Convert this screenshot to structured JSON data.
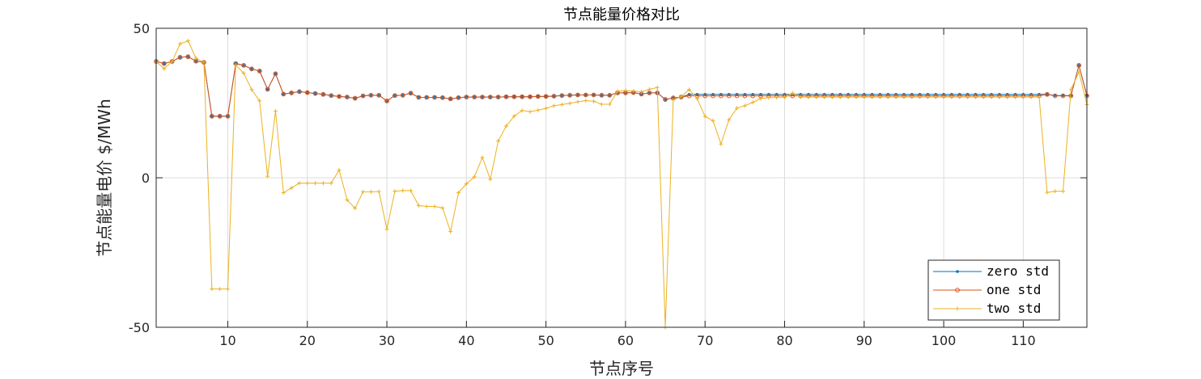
{
  "chart_data": {
    "type": "line",
    "title": "节点能量价格对比",
    "xlabel": "节点序号",
    "ylabel": "节点能量电价 $/MWh",
    "xlim": [
      1,
      118
    ],
    "ylim": [
      -50,
      50
    ],
    "xticks": [
      10,
      20,
      30,
      40,
      50,
      60,
      70,
      80,
      90,
      100,
      110
    ],
    "yticks": [
      -50,
      0,
      50
    ],
    "grid": true,
    "legend_position": "bottom-right",
    "series": [
      {
        "name": "zero std",
        "color": "#0072BD",
        "marker": "dot",
        "values": [
          38.9,
          38.2,
          38.9,
          40.3,
          40.5,
          39.0,
          38.6,
          20.6,
          20.6,
          20.6,
          38.2,
          37.6,
          36.4,
          35.7,
          29.6,
          34.8,
          28.0,
          28.4,
          28.8,
          28.5,
          28.2,
          27.9,
          27.5,
          27.2,
          27.0,
          26.6,
          27.4,
          27.6,
          27.6,
          25.7,
          27.5,
          27.6,
          28.3,
          26.9,
          26.9,
          26.9,
          26.8,
          26.4,
          26.8,
          27.0,
          27.0,
          27.0,
          27.0,
          27.0,
          27.1,
          27.1,
          27.1,
          27.1,
          27.2,
          27.2,
          27.3,
          27.5,
          27.6,
          27.7,
          27.7,
          27.7,
          27.6,
          27.6,
          28.4,
          28.4,
          28.5,
          28.0,
          28.4,
          28.4,
          26.2,
          26.7,
          27.0,
          27.9,
          27.9,
          27.9,
          27.9,
          27.9,
          27.9,
          27.9,
          27.9,
          27.9,
          27.9,
          27.9,
          27.9,
          27.9,
          27.9,
          27.9,
          27.9,
          27.9,
          27.9,
          27.9,
          27.9,
          27.9,
          27.9,
          27.9,
          27.9,
          27.9,
          27.9,
          27.9,
          27.9,
          27.9,
          27.9,
          27.9,
          27.9,
          27.9,
          27.9,
          27.9,
          27.9,
          27.9,
          27.9,
          27.9,
          27.9,
          27.9,
          27.9,
          27.9,
          27.9,
          27.9,
          27.9,
          27.5,
          27.5,
          27.5,
          37.6,
          27.5
        ]
      },
      {
        "name": "one std",
        "color": "#D95319",
        "marker": "circle",
        "values": [
          38.9,
          38.2,
          38.9,
          40.3,
          40.5,
          39.0,
          38.6,
          20.6,
          20.6,
          20.6,
          38.2,
          37.6,
          36.4,
          35.7,
          29.6,
          34.8,
          28.0,
          28.4,
          28.8,
          28.5,
          28.2,
          27.9,
          27.5,
          27.2,
          27.0,
          26.6,
          27.4,
          27.6,
          27.6,
          25.7,
          27.5,
          27.6,
          28.3,
          26.9,
          26.9,
          26.9,
          26.8,
          26.4,
          26.8,
          27.0,
          27.0,
          27.0,
          27.0,
          27.0,
          27.1,
          27.1,
          27.1,
          27.1,
          27.2,
          27.2,
          27.3,
          27.5,
          27.6,
          27.7,
          27.7,
          27.7,
          27.6,
          27.6,
          28.4,
          28.4,
          28.5,
          28.0,
          28.4,
          28.4,
          26.2,
          26.7,
          27.0,
          27.4,
          27.4,
          27.4,
          27.4,
          27.4,
          27.4,
          27.4,
          27.4,
          27.4,
          27.4,
          27.4,
          27.4,
          27.4,
          27.4,
          27.4,
          27.4,
          27.4,
          27.4,
          27.4,
          27.4,
          27.4,
          27.4,
          27.4,
          27.4,
          27.4,
          27.4,
          27.4,
          27.4,
          27.4,
          27.4,
          27.4,
          27.4,
          27.4,
          27.4,
          27.4,
          27.4,
          27.4,
          27.4,
          27.4,
          27.4,
          27.4,
          27.4,
          27.4,
          27.4,
          27.4,
          27.9,
          27.4,
          27.4,
          27.4,
          37.6,
          27.4
        ]
      },
      {
        "name": "two std",
        "color": "#EDB120",
        "marker": "plus",
        "values": [
          38.9,
          36.5,
          38.9,
          44.8,
          45.8,
          40.0,
          38.6,
          -37.2,
          -37.2,
          -37.2,
          37.7,
          35.0,
          29.5,
          25.7,
          0.5,
          22.3,
          -5.0,
          -3.4,
          -1.8,
          -1.8,
          -1.8,
          -1.8,
          -1.8,
          2.6,
          -7.4,
          -10.2,
          -4.7,
          -4.7,
          -4.6,
          -17.2,
          -4.5,
          -4.3,
          -4.3,
          -9.3,
          -9.6,
          -9.6,
          -10.1,
          -18.0,
          -5.0,
          -2.0,
          0.3,
          6.8,
          -0.5,
          12.3,
          17.3,
          20.6,
          22.5,
          22.1,
          22.6,
          23.2,
          24.1,
          24.5,
          24.9,
          25.4,
          25.8,
          25.6,
          24.6,
          24.6,
          29.0,
          29.2,
          29.0,
          28.8,
          29.6,
          30.2,
          -50.0,
          26.0,
          27.2,
          29.5,
          26.5,
          20.5,
          19.1,
          11.3,
          19.4,
          23.3,
          24.1,
          25.2,
          26.5,
          26.8,
          26.9,
          27.0,
          28.3,
          27.0,
          27.0,
          27.0,
          27.0,
          27.0,
          27.0,
          27.0,
          27.0,
          27.0,
          27.0,
          27.0,
          27.0,
          27.0,
          27.0,
          27.0,
          27.0,
          27.0,
          27.0,
          27.0,
          27.0,
          27.0,
          27.0,
          27.0,
          27.0,
          27.0,
          27.0,
          27.0,
          27.0,
          27.0,
          27.0,
          27.0,
          -4.9,
          -4.5,
          -4.5,
          29.5,
          35.4,
          24.5
        ]
      }
    ]
  }
}
